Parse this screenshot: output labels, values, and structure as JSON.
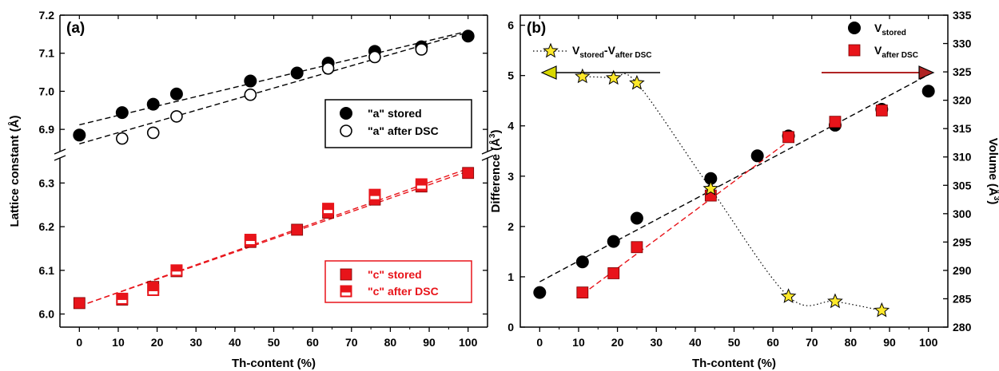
{
  "colors": {
    "black": "#000000",
    "red": "#e8141a",
    "star": "#ffe92b",
    "arrow_left": "#d8d800",
    "arrow_right": "#b02424"
  },
  "chart_data": [
    {
      "type": "scatter",
      "panel": "(a)",
      "xlabel": "Th-content (%)",
      "ylabel": "Lattice constant (Å)",
      "xlim": [
        -5,
        105
      ],
      "ylim_upper": [
        6.85,
        7.2
      ],
      "ylim_lower": [
        5.97,
        6.35
      ],
      "broken_axis": true,
      "xticks": [
        "0",
        "10",
        "20",
        "30",
        "40",
        "50",
        "60",
        "70",
        "80",
        "90",
        "100"
      ],
      "yticks_upper": [
        "6.9",
        "7.0",
        "7.1",
        "7.2"
      ],
      "yticks_lower": [
        "6.0",
        "6.1",
        "6.2",
        "6.3"
      ],
      "series": [
        {
          "name": "\"a\" stored",
          "marker": "filled-circle",
          "color": "#000000",
          "x": [
            0,
            11,
            19,
            25,
            44,
            56,
            64,
            76,
            88,
            100
          ],
          "y": [
            6.885,
            6.944,
            6.966,
            6.993,
            7.027,
            7.048,
            7.074,
            7.105,
            7.117,
            7.145
          ]
        },
        {
          "name": "\"a\" after DSC",
          "marker": "open-circle",
          "color": "#000000",
          "x": [
            11,
            19,
            25,
            44,
            64,
            76,
            88
          ],
          "y": [
            6.876,
            6.891,
            6.934,
            6.991,
            7.06,
            7.09,
            7.11
          ]
        },
        {
          "name": "\"c\" stored",
          "marker": "filled-square",
          "color": "#e8141a",
          "x": [
            0,
            11,
            19,
            25,
            44,
            56,
            64,
            76,
            88,
            100
          ],
          "y": [
            6.025,
            6.033,
            6.062,
            6.098,
            6.165,
            6.193,
            6.232,
            6.262,
            6.292,
            6.323
          ]
        },
        {
          "name": "\"c\" after DSC",
          "marker": "open-square",
          "color": "#e8141a",
          "x": [
            11,
            19,
            25,
            44,
            64,
            76,
            88
          ],
          "y": [
            6.035,
            6.055,
            6.1,
            6.17,
            6.241,
            6.273,
            6.297
          ]
        }
      ],
      "fit_lines": [
        {
          "series": "\"a\" stored",
          "x": [
            0,
            100
          ],
          "y": [
            6.912,
            7.158
          ]
        },
        {
          "series": "\"a\" after DSC",
          "x": [
            0,
            100
          ],
          "y": [
            6.862,
            7.155
          ]
        },
        {
          "series": "\"c\" stored",
          "x": [
            0,
            100
          ],
          "y": [
            6.018,
            6.327
          ]
        },
        {
          "series": "\"c\" after DSC",
          "x": [
            0,
            100
          ],
          "y": [
            6.018,
            6.333
          ]
        }
      ],
      "legend": [
        {
          "label": "\"a\" stored",
          "marker": "filled-circle",
          "color": "#000000"
        },
        {
          "label": "\"a\" after DSC",
          "marker": "open-circle",
          "color": "#000000"
        },
        {
          "label": "\"c\" stored",
          "marker": "filled-square",
          "color": "#e8141a"
        },
        {
          "label": "\"c\" after DSC",
          "marker": "open-square",
          "color": "#e8141a"
        }
      ]
    },
    {
      "type": "scatter",
      "panel": "(b)",
      "xlabel": "Th-content (%)",
      "ylabel_left_main": "Difference (Å",
      "ylabel_left_sup": "3",
      "ylabel_left_tail": ")",
      "ylabel_right_main": "Volume (Å",
      "ylabel_right_sup": "3",
      "ylabel_right_tail": ")",
      "xlim": [
        -5,
        105
      ],
      "ylim_left": [
        0,
        6.2
      ],
      "ylim_right": [
        280,
        335
      ],
      "xticks": [
        "0",
        "10",
        "20",
        "30",
        "40",
        "50",
        "60",
        "70",
        "80",
        "90",
        "100"
      ],
      "yticks_left": [
        "0",
        "1",
        "2",
        "3",
        "4",
        "5",
        "6"
      ],
      "yticks_right": [
        "280",
        "285",
        "290",
        "295",
        "300",
        "305",
        "310",
        "315",
        "320",
        "325",
        "330",
        "335"
      ],
      "series": [
        {
          "name": "V stored",
          "axis": "right",
          "marker": "filled-circle",
          "color": "#000000",
          "x": [
            0,
            11,
            19,
            25,
            44,
            56,
            64,
            76,
            88,
            100
          ],
          "y": [
            286.1,
            291.5,
            295.1,
            299.2,
            306.2,
            310.2,
            313.7,
            315.6,
            318.4,
            321.6
          ]
        },
        {
          "name": "V after DSC",
          "axis": "right",
          "marker": "filled-square",
          "color": "#e8141a",
          "x": [
            11,
            19,
            25,
            44,
            64,
            76,
            88
          ],
          "y": [
            286.1,
            289.5,
            294.1,
            303.2,
            313.5,
            316.2,
            318.2
          ]
        },
        {
          "name": "V stored-V after DSC",
          "axis": "left",
          "marker": "star",
          "color": "#ffe92b",
          "x": [
            11,
            19,
            25,
            44,
            64,
            76,
            88
          ],
          "y": [
            4.98,
            4.95,
            4.85,
            2.75,
            0.61,
            0.51,
            0.33
          ]
        }
      ],
      "fit_lines": [
        {
          "series": "V stored",
          "axis": "right",
          "x": [
            0,
            100
          ],
          "y": [
            288.0,
            324.5
          ]
        },
        {
          "series": "V after DSC",
          "axis": "right",
          "x": [
            11,
            64
          ],
          "y": [
            285.8,
            312.8
          ]
        }
      ],
      "legend": [
        {
          "main": "V",
          "sub": "stored",
          "marker": "filled-circle",
          "color": "#000000"
        },
        {
          "main": "V",
          "sub": "after DSC",
          "marker": "filled-square",
          "color": "#e8141a"
        },
        {
          "main": "V",
          "sub": "stored",
          "dash": "-V",
          "sub2": "after DSC",
          "marker": "star",
          "color": "#ffe92b"
        }
      ]
    }
  ]
}
